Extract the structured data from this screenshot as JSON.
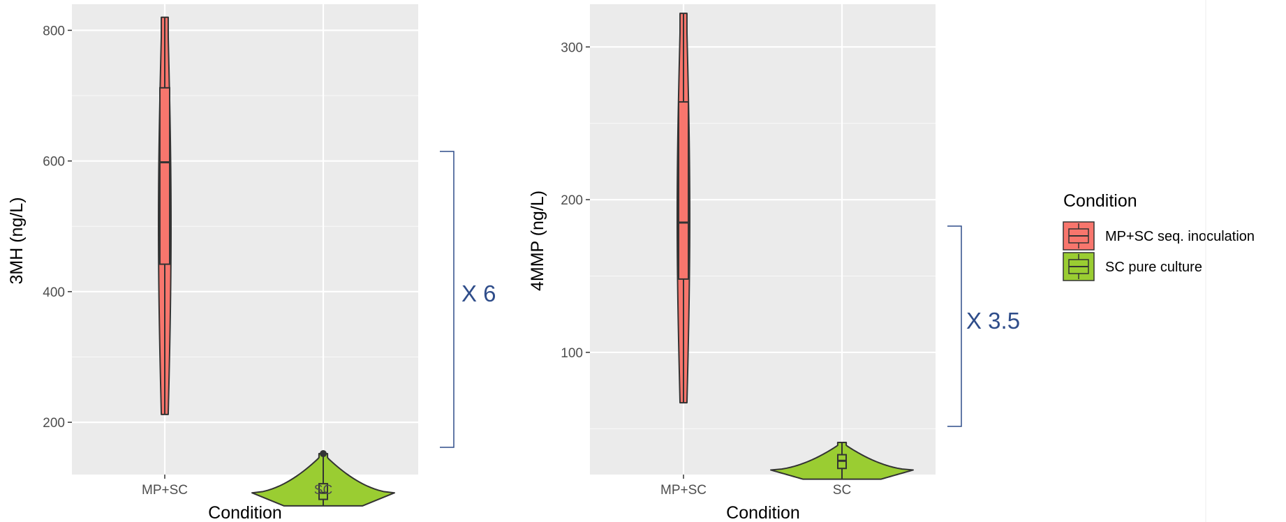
{
  "chart_data": [
    {
      "type": "violin",
      "ylabel": "3MH (ng/L)",
      "xlabel": "Condition",
      "categories": [
        "MP+SC",
        "SC"
      ],
      "ylim": [
        120,
        840
      ],
      "yticks": [
        200,
        400,
        600,
        800
      ],
      "grid": true,
      "groups": [
        {
          "category": "MP+SC",
          "series": "MP+SC seq. inoculation",
          "min": 212,
          "q1": 442,
          "median": 598,
          "q3": 712,
          "max": 820,
          "outliers": []
        },
        {
          "category": "SC",
          "series": "SC pure culture",
          "min": 72,
          "q1": 82,
          "median": 92,
          "q3": 106,
          "max": 152,
          "outliers": [
            152
          ]
        }
      ],
      "annotation": "X 6",
      "bracket": [
        75,
        600
      ]
    },
    {
      "type": "violin",
      "ylabel": "4MMP (ng/L)",
      "xlabel": "Condition",
      "categories": [
        "MP+SC",
        "SC"
      ],
      "ylim": [
        20,
        328
      ],
      "yticks": [
        100,
        200,
        300
      ],
      "grid": true,
      "groups": [
        {
          "category": "MP+SC",
          "series": "MP+SC seq. inoculation",
          "min": 67,
          "q1": 148,
          "median": 185,
          "q3": 264,
          "max": 322,
          "outliers": []
        },
        {
          "category": "SC",
          "series": "SC pure culture",
          "min": 17,
          "q1": 24,
          "median": 29,
          "q3": 33,
          "max": 41,
          "outliers": []
        }
      ],
      "annotation": "X 3.5",
      "bracket": [
        25,
        180
      ]
    }
  ],
  "legend": {
    "title": "Condition",
    "placement": "right",
    "items": [
      {
        "label": "MP+SC seq. inoculation",
        "color": "#f8766d"
      },
      {
        "label": "SC pure culture",
        "color": "#9acd32"
      }
    ]
  },
  "colors": {
    "panel": "#ebebeb",
    "grid": "#ffffff",
    "outline": "#333333",
    "annotation": "#2f4d8a"
  }
}
